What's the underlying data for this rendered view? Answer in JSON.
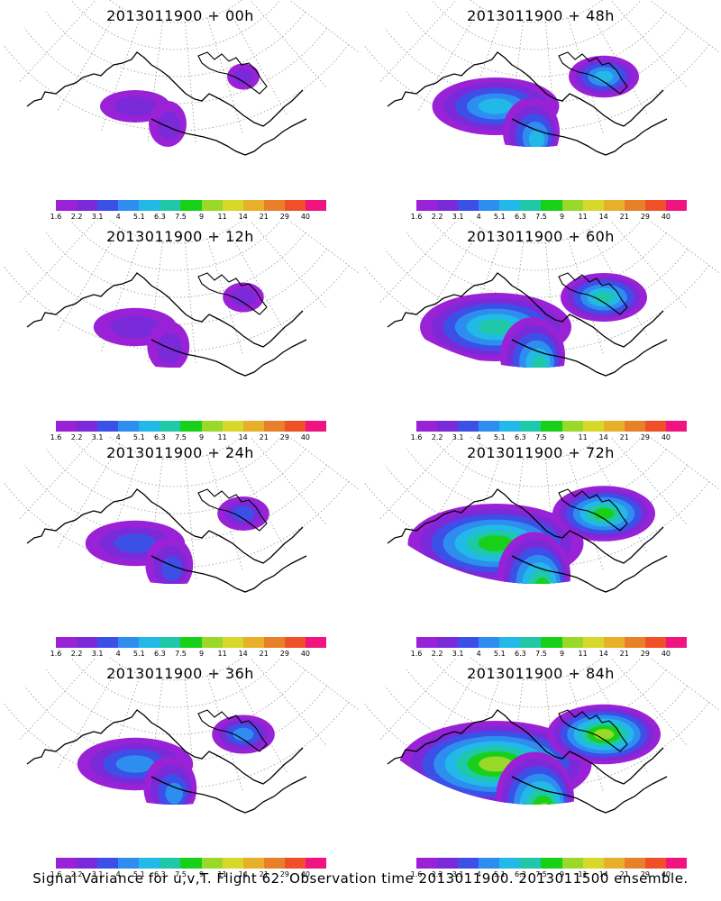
{
  "footer": "Signal Variance for u,v,T. Flight 62. Observation time 2013011900. 2013011500 ensemble.",
  "colorbar": {
    "labels": [
      "1.6",
      "2.2",
      "3.1",
      "4",
      "5.1",
      "6.3",
      "7.5",
      "9",
      "11",
      "14",
      "21",
      "29",
      "40"
    ],
    "colors": [
      "#9a22d6",
      "#7a2ad8",
      "#3c50e8",
      "#2e8ef0",
      "#22b8e8",
      "#1ec8a8",
      "#18d018",
      "#9ad82a",
      "#d8d82a",
      "#e8b02a",
      "#e8802a",
      "#f05028",
      "#f01480"
    ]
  },
  "panels": [
    {
      "title": "2013011900 + 00h",
      "intensity": 0.1
    },
    {
      "title": "2013011900 + 48h",
      "intensity": 0.45
    },
    {
      "title": "2013011900 + 12h",
      "intensity": 0.18
    },
    {
      "title": "2013011900 + 60h",
      "intensity": 0.6
    },
    {
      "title": "2013011900 + 24h",
      "intensity": 0.28
    },
    {
      "title": "2013011900 + 72h",
      "intensity": 0.75
    },
    {
      "title": "2013011900 + 36h",
      "intensity": 0.38
    },
    {
      "title": "2013011900 + 84h",
      "intensity": 0.85
    }
  ]
}
